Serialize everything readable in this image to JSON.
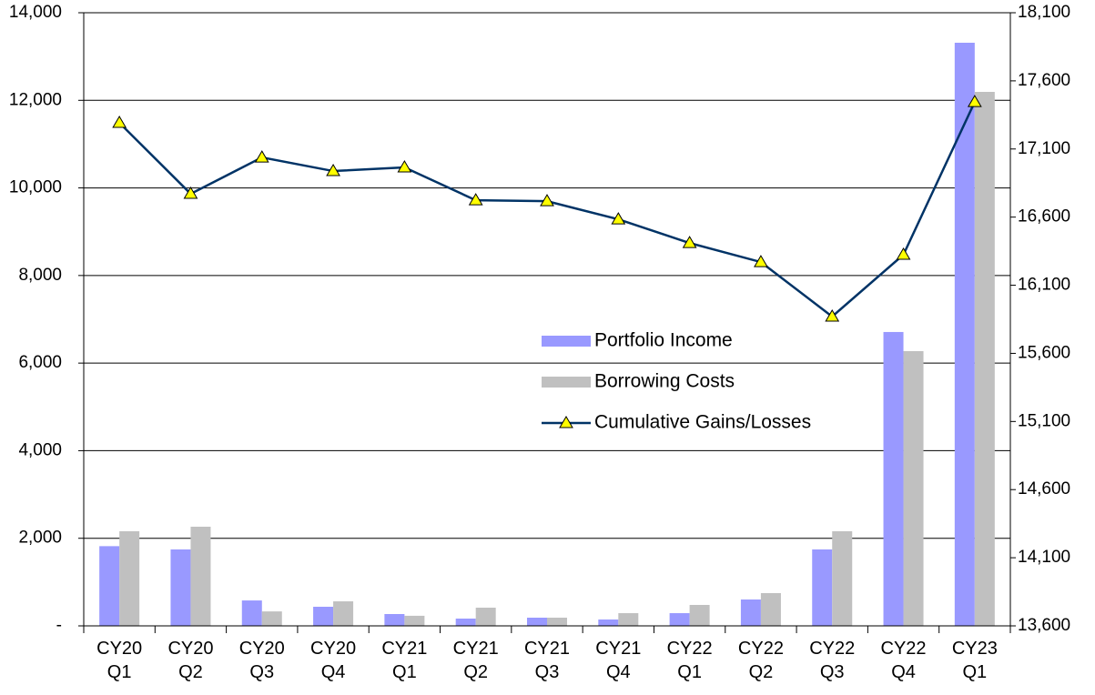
{
  "chart_data": {
    "type": "bar-line",
    "categories": [
      "CY20 Q1",
      "CY20 Q2",
      "CY20 Q3",
      "CY20 Q4",
      "CY21 Q1",
      "CY21 Q2",
      "CY21 Q3",
      "CY21 Q4",
      "CY22 Q1",
      "CY22 Q2",
      "CY22 Q3",
      "CY22 Q4",
      "CY23 Q1"
    ],
    "series": [
      {
        "name": "Portfolio Income",
        "type": "bar",
        "color": "#9999ff",
        "values": [
          1820,
          1745,
          580,
          436,
          270,
          166,
          187,
          145,
          290,
          602,
          1745,
          6710,
          13315
        ]
      },
      {
        "name": "Borrowing Costs",
        "type": "bar",
        "color": "#c0c0c0",
        "values": [
          2160,
          2264,
          330,
          560,
          230,
          415,
          187,
          290,
          478,
          748,
          2160,
          6273,
          12193
        ]
      },
      {
        "name": "Cumulative Gains/Losses",
        "type": "line",
        "axis": "y2",
        "color": "#003366",
        "marker_color": "#ffff00",
        "values": [
          17292,
          16771,
          17038,
          16938,
          16965,
          16724,
          16717,
          16584,
          16410,
          16270,
          15870,
          16324,
          17445
        ]
      }
    ],
    "ylim": [
      0,
      14000
    ],
    "yticks": [
      {
        "value": 0,
        "label": "-"
      },
      {
        "value": 2000,
        "label": "2,000"
      },
      {
        "value": 4000,
        "label": "4,000"
      },
      {
        "value": 6000,
        "label": "6,000"
      },
      {
        "value": 8000,
        "label": "8,000"
      },
      {
        "value": 10000,
        "label": "10,000"
      },
      {
        "value": 12000,
        "label": "12,000"
      },
      {
        "value": 14000,
        "label": "14,000"
      }
    ],
    "y2lim": [
      13600,
      18100
    ],
    "y2ticks": [
      {
        "value": 13600,
        "label": "13,600"
      },
      {
        "value": 14100,
        "label": "14,100"
      },
      {
        "value": 14600,
        "label": "14,600"
      },
      {
        "value": 15100,
        "label": "15,100"
      },
      {
        "value": 15600,
        "label": "15,600"
      },
      {
        "value": 16100,
        "label": "16,100"
      },
      {
        "value": 16600,
        "label": "16,600"
      },
      {
        "value": 17100,
        "label": "17,100"
      },
      {
        "value": 17600,
        "label": "17,600"
      },
      {
        "value": 18100,
        "label": "18,100"
      }
    ],
    "grid": true
  }
}
